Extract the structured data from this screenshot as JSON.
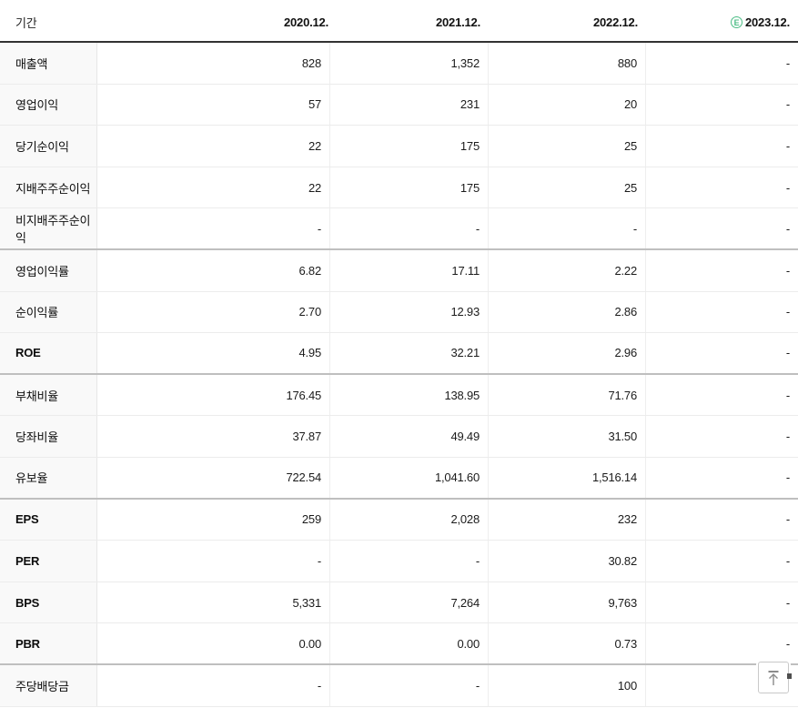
{
  "colors": {
    "estimate_green": "#4bbd85",
    "header_border": "#323232",
    "group_divider": "#bfbfbf",
    "row_divider": "#ececec",
    "label_col_bg": "#f9f9f9"
  },
  "table": {
    "corner_label": "기간",
    "columns": [
      "2020.12.",
      "2021.12.",
      "2022.12.",
      "2023.12."
    ],
    "estimate_badge": "E",
    "rows": [
      {
        "label": "매출액",
        "latin": false,
        "group_end": false,
        "values": [
          "828",
          "1,352",
          "880",
          "-"
        ]
      },
      {
        "label": "영업이익",
        "latin": false,
        "group_end": false,
        "values": [
          "57",
          "231",
          "20",
          "-"
        ]
      },
      {
        "label": "당기순이익",
        "latin": false,
        "group_end": false,
        "values": [
          "22",
          "175",
          "25",
          "-"
        ]
      },
      {
        "label": "지배주주순이익",
        "latin": false,
        "group_end": false,
        "values": [
          "22",
          "175",
          "25",
          "-"
        ]
      },
      {
        "label": "비지배주주순이익",
        "latin": false,
        "group_end": true,
        "values": [
          "-",
          "-",
          "-",
          "-"
        ]
      },
      {
        "label": "영업이익률",
        "latin": false,
        "group_end": false,
        "values": [
          "6.82",
          "17.11",
          "2.22",
          "-"
        ]
      },
      {
        "label": "순이익률",
        "latin": false,
        "group_end": false,
        "values": [
          "2.70",
          "12.93",
          "2.86",
          "-"
        ]
      },
      {
        "label": "ROE",
        "latin": true,
        "group_end": true,
        "values": [
          "4.95",
          "32.21",
          "2.96",
          "-"
        ]
      },
      {
        "label": "부채비율",
        "latin": false,
        "group_end": false,
        "values": [
          "176.45",
          "138.95",
          "71.76",
          "-"
        ]
      },
      {
        "label": "당좌비율",
        "latin": false,
        "group_end": false,
        "values": [
          "37.87",
          "49.49",
          "31.50",
          "-"
        ]
      },
      {
        "label": "유보율",
        "latin": false,
        "group_end": true,
        "values": [
          "722.54",
          "1,041.60",
          "1,516.14",
          "-"
        ]
      },
      {
        "label": "EPS",
        "latin": true,
        "group_end": false,
        "values": [
          "259",
          "2,028",
          "232",
          "-"
        ]
      },
      {
        "label": "PER",
        "latin": true,
        "group_end": false,
        "values": [
          "-",
          "-",
          "30.82",
          "-"
        ]
      },
      {
        "label": "BPS",
        "latin": true,
        "group_end": false,
        "values": [
          "5,331",
          "7,264",
          "9,763",
          "-"
        ]
      },
      {
        "label": "PBR",
        "latin": true,
        "group_end": true,
        "values": [
          "0.00",
          "0.00",
          "0.73",
          "-"
        ]
      },
      {
        "label": "주당배당금",
        "latin": false,
        "group_end": false,
        "values": [
          "-",
          "-",
          "100",
          "-"
        ]
      }
    ]
  },
  "scroll_top_button": {
    "tooltip": "맨위로"
  }
}
